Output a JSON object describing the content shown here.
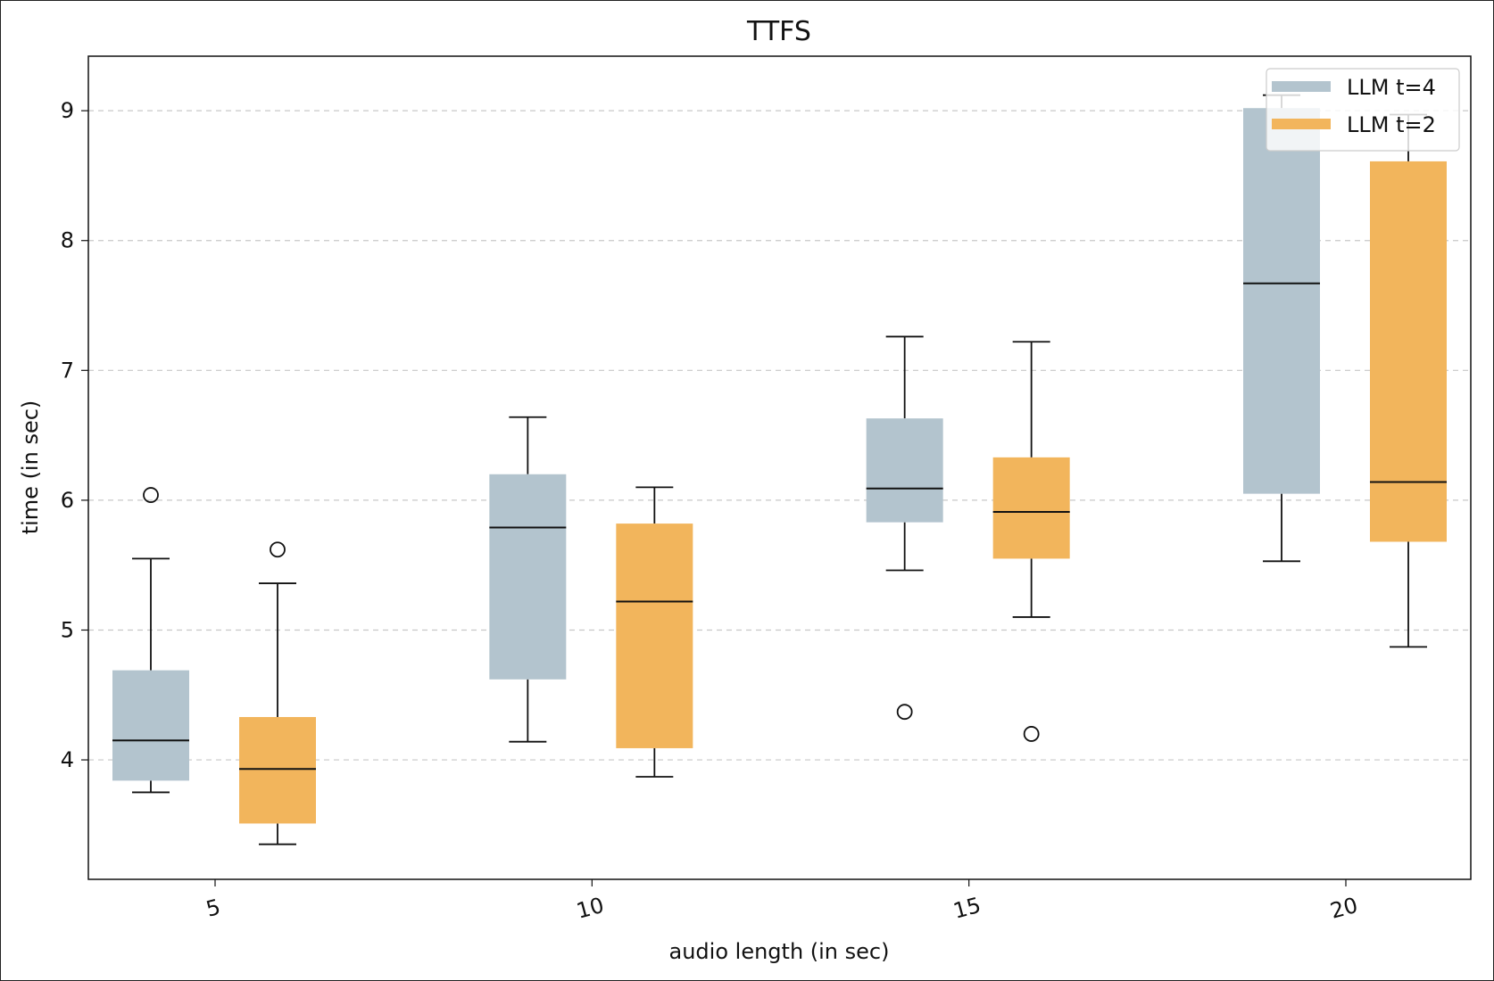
{
  "chart_data": {
    "type": "box",
    "title": "TTFS",
    "xlabel": "audio length (in sec)",
    "ylabel": "time (in sec)",
    "x_ticks": [
      "5",
      "10",
      "15",
      "20"
    ],
    "y_ticks": [
      "4",
      "5",
      "6",
      "7",
      "8",
      "9"
    ],
    "ylim": [
      3.08,
      9.42
    ],
    "grid": "horizontal dashed",
    "legend_position": "top-right",
    "series": [
      {
        "name": "LLM t=4",
        "color": "#b3c4ce",
        "boxes": [
          {
            "x": 5,
            "whisker_low": 3.75,
            "q1": 3.84,
            "median": 4.15,
            "q3": 4.69,
            "whisker_high": 5.55,
            "outliers": [
              6.04
            ]
          },
          {
            "x": 10,
            "whisker_low": 4.14,
            "q1": 4.62,
            "median": 5.79,
            "q3": 6.2,
            "whisker_high": 6.64,
            "outliers": []
          },
          {
            "x": 15,
            "whisker_low": 5.46,
            "q1": 5.83,
            "median": 6.09,
            "q3": 6.63,
            "whisker_high": 7.26,
            "outliers": [
              4.37
            ]
          },
          {
            "x": 20,
            "whisker_low": 5.53,
            "q1": 6.05,
            "median": 7.67,
            "q3": 9.02,
            "whisker_high": 9.12,
            "outliers": []
          }
        ]
      },
      {
        "name": "LLM t=2",
        "color": "#f2b55c",
        "boxes": [
          {
            "x": 5,
            "whisker_low": 3.35,
            "q1": 3.51,
            "median": 3.93,
            "q3": 4.33,
            "whisker_high": 5.36,
            "outliers": [
              5.62
            ]
          },
          {
            "x": 10,
            "whisker_low": 3.87,
            "q1": 4.09,
            "median": 5.22,
            "q3": 5.82,
            "whisker_high": 6.1,
            "outliers": []
          },
          {
            "x": 15,
            "whisker_low": 5.1,
            "q1": 5.55,
            "median": 5.91,
            "q3": 6.33,
            "whisker_high": 7.22,
            "outliers": [
              4.2
            ]
          },
          {
            "x": 20,
            "whisker_low": 4.87,
            "q1": 5.68,
            "median": 6.14,
            "q3": 8.61,
            "whisker_high": 8.97,
            "outliers": []
          }
        ]
      }
    ]
  }
}
